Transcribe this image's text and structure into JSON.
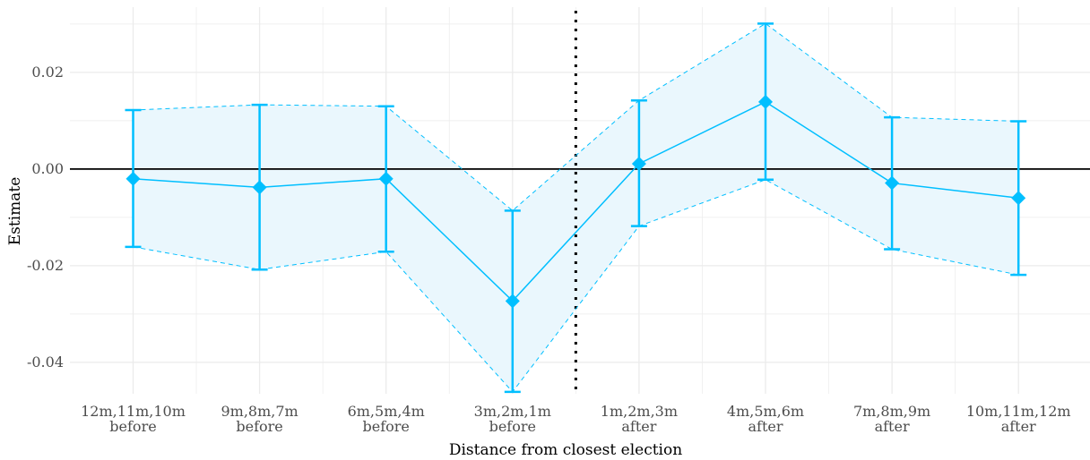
{
  "chart_data": {
    "type": "line",
    "title": "",
    "xlabel": "Distance from closest election",
    "ylabel": "Estimate",
    "categories": [
      [
        "12m,11m,10m",
        "before"
      ],
      [
        "9m,8m,7m",
        "before"
      ],
      [
        "6m,5m,4m",
        "before"
      ],
      [
        "3m,2m,1m",
        "before"
      ],
      [
        "1m,2m,3m",
        "after"
      ],
      [
        "4m,5m,6m",
        "after"
      ],
      [
        "7m,8m,9m",
        "after"
      ],
      [
        "10m,11m,12m",
        "after"
      ]
    ],
    "series": [
      {
        "estimate": [
          -0.002,
          -0.0038,
          -0.002,
          -0.0273,
          0.0011,
          0.0139,
          -0.0029,
          -0.006
        ],
        "lower": [
          -0.0161,
          -0.0208,
          -0.0171,
          -0.0461,
          -0.0118,
          -0.0022,
          -0.0166,
          -0.0219
        ],
        "upper": [
          0.0122,
          0.0133,
          0.013,
          -0.0086,
          0.0142,
          0.0301,
          0.0107,
          0.0099
        ]
      }
    ],
    "yticks": [
      -0.04,
      -0.02,
      0.0,
      0.02
    ],
    "ytick_labels": [
      "-0.04",
      "-0.02",
      "0.00",
      "0.02"
    ],
    "ylim": [
      -0.0465,
      0.0335
    ],
    "reference_hline": 0,
    "vertical_divider": "between 3m,2m,1m before and 1m,2m,3m after (dotted)",
    "grid": true,
    "colors": {
      "series": "#00bfff",
      "band_fill": "#eaf7fd",
      "grid": "#ebebeb",
      "zero_line": "#000000",
      "divider": "#000000"
    }
  }
}
